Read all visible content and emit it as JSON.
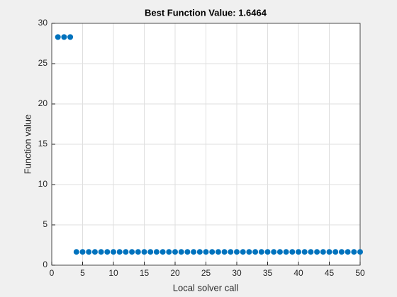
{
  "chart_data": {
    "type": "scatter",
    "title": "Best Function Value: 1.6464",
    "x_label": "Local solver call",
    "y_label": "Function value",
    "x": [
      1,
      2,
      3,
      4,
      5,
      6,
      7,
      8,
      9,
      10,
      11,
      12,
      13,
      14,
      15,
      16,
      17,
      18,
      19,
      20,
      21,
      22,
      23,
      24,
      25,
      26,
      27,
      28,
      29,
      30,
      31,
      32,
      33,
      34,
      35,
      36,
      37,
      38,
      39,
      40,
      41,
      42,
      43,
      44,
      45,
      46,
      47,
      48,
      49,
      50
    ],
    "values": [
      28.3,
      28.3,
      28.3,
      1.6464,
      1.6464,
      1.6464,
      1.6464,
      1.6464,
      1.6464,
      1.6464,
      1.6464,
      1.6464,
      1.6464,
      1.6464,
      1.6464,
      1.6464,
      1.6464,
      1.6464,
      1.6464,
      1.6464,
      1.6464,
      1.6464,
      1.6464,
      1.6464,
      1.6464,
      1.6464,
      1.6464,
      1.6464,
      1.6464,
      1.6464,
      1.6464,
      1.6464,
      1.6464,
      1.6464,
      1.6464,
      1.6464,
      1.6464,
      1.6464,
      1.6464,
      1.6464,
      1.6464,
      1.6464,
      1.6464,
      1.6464,
      1.6464,
      1.6464,
      1.6464,
      1.6464,
      1.6464,
      1.6464
    ],
    "color": "#0072bd",
    "xlim": [
      0,
      50
    ],
    "xticks": [
      0,
      5,
      10,
      15,
      20,
      25,
      30,
      35,
      40,
      45,
      50
    ],
    "ylim": [
      0,
      30
    ],
    "yticks": [
      0,
      5,
      10,
      15,
      20,
      25,
      30
    ],
    "grid": true
  }
}
